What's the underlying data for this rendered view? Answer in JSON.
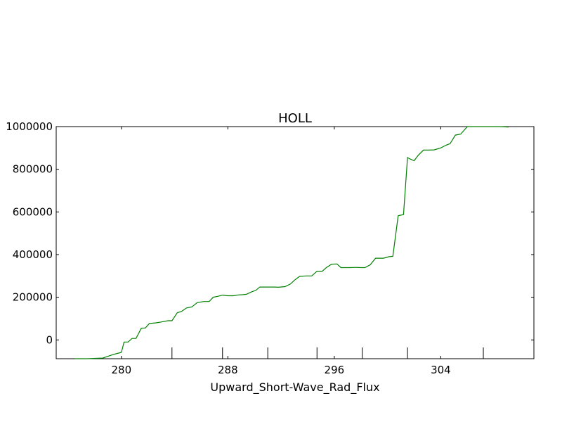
{
  "chart_data": {
    "type": "line",
    "title": "HOLL",
    "xlabel": "Upward_Short-Wave_Rad_Flux",
    "ylabel": "",
    "xlim": [
      275.1,
      311.0
    ],
    "ylim": [
      -88000,
      1000000
    ],
    "xticks": [
      280,
      288,
      296,
      304
    ],
    "yticks": [
      0,
      200000,
      400000,
      600000,
      800000,
      1000000
    ],
    "xtick_labels": [
      "280",
      "288",
      "296",
      "304"
    ],
    "ytick_labels": [
      "0",
      "200000",
      "400000",
      "600000",
      "800000",
      "1000000"
    ],
    "grid": false,
    "legend": "none",
    "extra_bottom_ticks_x": [
      283.8,
      287.6,
      291.0,
      294.7,
      298.1,
      301.5,
      307.2
    ],
    "series": [
      {
        "color": "#008000",
        "x": [
          276.5,
          277.4,
          278.6,
          279.4,
          279.9,
          280.0,
          280.2,
          280.5,
          280.8,
          281.1,
          281.5,
          281.8,
          282.1,
          282.6,
          283.0,
          283.5,
          283.8,
          284.2,
          284.5,
          284.9,
          285.3,
          285.7,
          286.2,
          286.6,
          286.9,
          287.3,
          287.6,
          288.0,
          288.4,
          288.8,
          289.1,
          289.4,
          289.8,
          290.1,
          290.4,
          290.8,
          291.2,
          291.5,
          291.8,
          292.3,
          292.7,
          293.0,
          293.4,
          293.9,
          294.3,
          294.7,
          295.1,
          295.4,
          295.8,
          296.2,
          296.5,
          296.9,
          297.2,
          297.6,
          298.0,
          298.3,
          298.7,
          299.1,
          299.4,
          299.7,
          300.1,
          300.4,
          300.8,
          301.2,
          301.5,
          301.7,
          302.0,
          302.3,
          302.7,
          303.1,
          303.5,
          304.0,
          304.4,
          304.7,
          305.1,
          305.5,
          306.0,
          306.4,
          306.8,
          307.2,
          307.6,
          308.0,
          308.4,
          309.1
        ],
        "y": [
          -88000,
          -88000,
          -85000,
          -68000,
          -60000,
          -58000,
          -10000,
          -10000,
          7000,
          7000,
          55000,
          56000,
          77000,
          80000,
          84000,
          90000,
          90000,
          128000,
          133000,
          150000,
          155000,
          175000,
          180000,
          180000,
          200000,
          205000,
          210000,
          207000,
          207000,
          211000,
          212000,
          214000,
          226000,
          232000,
          248000,
          248000,
          248000,
          248000,
          247000,
          250000,
          262000,
          280000,
          298000,
          300000,
          300000,
          322000,
          322000,
          339000,
          355000,
          356000,
          339000,
          339000,
          339000,
          340000,
          339000,
          339000,
          352000,
          383000,
          383000,
          383000,
          390000,
          392000,
          582000,
          588000,
          855000,
          848000,
          840000,
          865000,
          890000,
          890000,
          891000,
          900000,
          913000,
          920000,
          960000,
          965000,
          1000000,
          1000000,
          1000000,
          1000000,
          1000000,
          1000000,
          1000000,
          998000
        ]
      }
    ]
  }
}
